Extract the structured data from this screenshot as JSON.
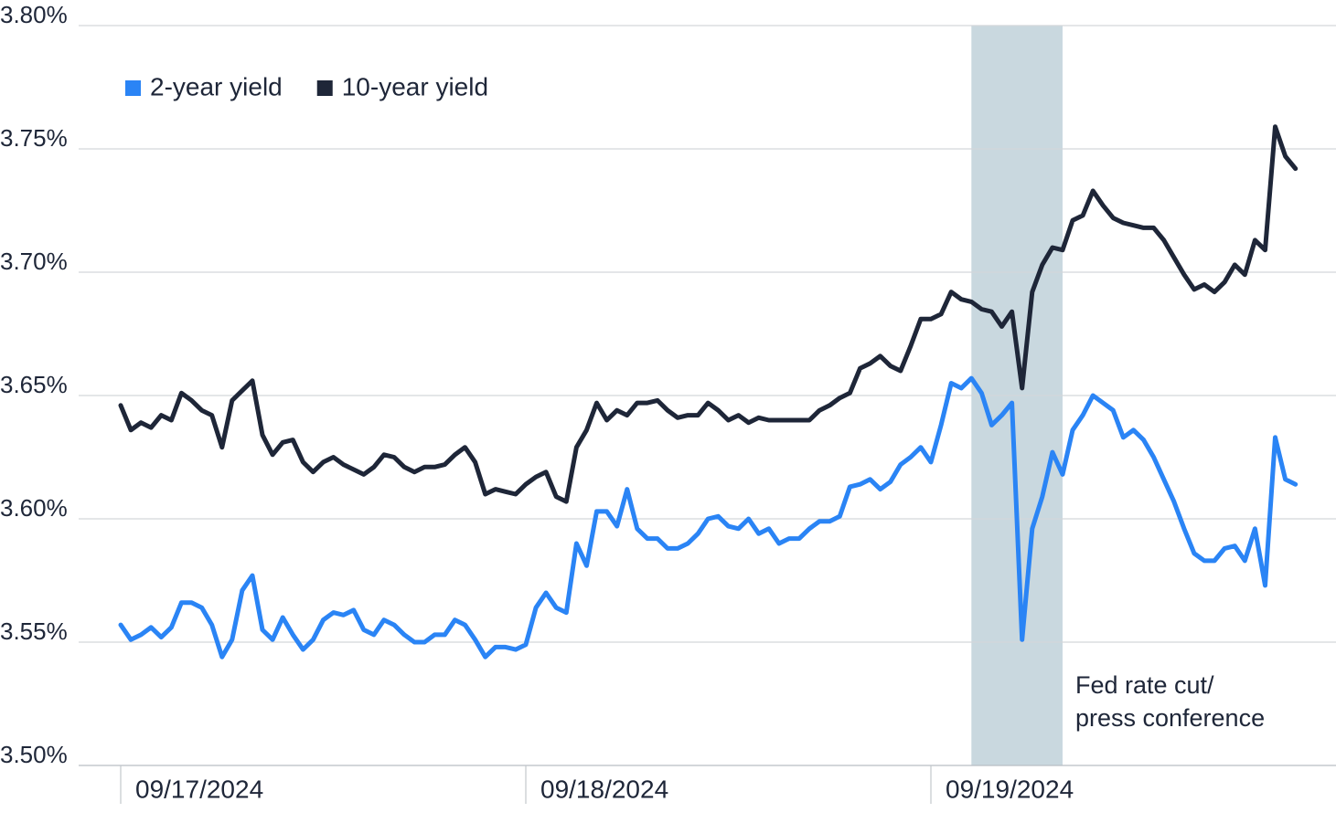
{
  "chart_data": {
    "type": "line",
    "categories": [
      "09/17/2024",
      null,
      null,
      null,
      null,
      null,
      null,
      null,
      null,
      null,
      null,
      null,
      null,
      null,
      null,
      null,
      null,
      null,
      null,
      null,
      null,
      null,
      null,
      null,
      null,
      null,
      null,
      null,
      null,
      null,
      null,
      null,
      null,
      null,
      null,
      null,
      null,
      null,
      null,
      null,
      "09/18/2024",
      null,
      null,
      null,
      null,
      null,
      null,
      null,
      null,
      null,
      null,
      null,
      null,
      null,
      null,
      null,
      null,
      null,
      null,
      null,
      null,
      null,
      null,
      null,
      null,
      null,
      null,
      null,
      null,
      null,
      null,
      null,
      null,
      null,
      null,
      null,
      null,
      null,
      null,
      null,
      "09/19/2024",
      null,
      null,
      null,
      null,
      null,
      null,
      null,
      null,
      null,
      null,
      null,
      null,
      null,
      null,
      null,
      null,
      null,
      null,
      null,
      null,
      null,
      null,
      null,
      null,
      null,
      null,
      null,
      null,
      null,
      null,
      null,
      null,
      null,
      null,
      null,
      null
    ],
    "series": [
      {
        "name": "2-year yield",
        "color": "#2a84f5",
        "values": [
          3.557,
          3.551,
          3.553,
          3.556,
          3.552,
          3.556,
          3.566,
          3.566,
          3.564,
          3.557,
          3.544,
          3.551,
          3.571,
          3.577,
          3.555,
          3.551,
          3.56,
          3.553,
          3.547,
          3.551,
          3.559,
          3.562,
          3.561,
          3.563,
          3.555,
          3.553,
          3.559,
          3.557,
          3.553,
          3.55,
          3.55,
          3.553,
          3.553,
          3.559,
          3.557,
          3.551,
          3.544,
          3.548,
          3.548,
          3.547,
          3.549,
          3.564,
          3.57,
          3.564,
          3.562,
          3.59,
          3.581,
          3.603,
          3.603,
          3.597,
          3.612,
          3.596,
          3.592,
          3.592,
          3.588,
          3.588,
          3.59,
          3.594,
          3.6,
          3.601,
          3.597,
          3.596,
          3.6,
          3.594,
          3.596,
          3.59,
          3.592,
          3.592,
          3.596,
          3.599,
          3.599,
          3.601,
          3.613,
          3.614,
          3.616,
          3.612,
          3.615,
          3.622,
          3.625,
          3.629,
          3.623,
          3.638,
          3.655,
          3.653,
          3.657,
          3.651,
          3.638,
          3.642,
          3.647,
          3.551,
          3.596,
          3.609,
          3.627,
          3.618,
          3.636,
          3.642,
          3.65,
          3.647,
          3.644,
          3.633,
          3.636,
          3.632,
          3.625,
          3.616,
          3.607,
          3.596,
          3.586,
          3.583,
          3.583,
          3.588,
          3.589,
          3.583,
          3.596,
          3.573,
          3.633,
          3.616,
          3.614
        ]
      },
      {
        "name": "10-year yield",
        "color": "#1e2638",
        "values": [
          3.646,
          3.636,
          3.639,
          3.637,
          3.642,
          3.64,
          3.651,
          3.648,
          3.644,
          3.642,
          3.629,
          3.648,
          3.652,
          3.656,
          3.634,
          3.626,
          3.631,
          3.632,
          3.623,
          3.619,
          3.623,
          3.625,
          3.622,
          3.62,
          3.618,
          3.621,
          3.626,
          3.625,
          3.621,
          3.619,
          3.621,
          3.621,
          3.622,
          3.626,
          3.629,
          3.623,
          3.61,
          3.612,
          3.611,
          3.61,
          3.614,
          3.617,
          3.619,
          3.609,
          3.607,
          3.629,
          3.636,
          3.647,
          3.64,
          3.644,
          3.642,
          3.647,
          3.647,
          3.648,
          3.644,
          3.641,
          3.642,
          3.642,
          3.647,
          3.644,
          3.64,
          3.642,
          3.639,
          3.641,
          3.64,
          3.64,
          3.64,
          3.64,
          3.64,
          3.644,
          3.646,
          3.649,
          3.651,
          3.661,
          3.663,
          3.666,
          3.662,
          3.66,
          3.67,
          3.681,
          3.681,
          3.683,
          3.692,
          3.689,
          3.688,
          3.685,
          3.684,
          3.678,
          3.684,
          3.653,
          3.692,
          3.703,
          3.71,
          3.709,
          3.721,
          3.723,
          3.733,
          3.727,
          3.722,
          3.72,
          3.719,
          3.718,
          3.718,
          3.713,
          3.706,
          3.699,
          3.693,
          3.695,
          3.692,
          3.696,
          3.703,
          3.699,
          3.713,
          3.709,
          3.759,
          3.747,
          3.742
        ]
      }
    ],
    "ylim": [
      3.5,
      3.8
    ],
    "yticks": [
      {
        "value": 3.5,
        "label": "3.50%"
      },
      {
        "value": 3.55,
        "label": "3.55%"
      },
      {
        "value": 3.6,
        "label": "3.60%"
      },
      {
        "value": 3.65,
        "label": "3.65%"
      },
      {
        "value": 3.7,
        "label": "3.70%"
      },
      {
        "value": 3.75,
        "label": "3.75%"
      },
      {
        "value": 3.8,
        "label": "3.80%"
      }
    ],
    "grid": true,
    "legend": "top-left",
    "highlight": {
      "start": 84,
      "end": 93,
      "color": "#c9d8df",
      "label": [
        "Fed rate cut/",
        "press conference"
      ]
    }
  }
}
